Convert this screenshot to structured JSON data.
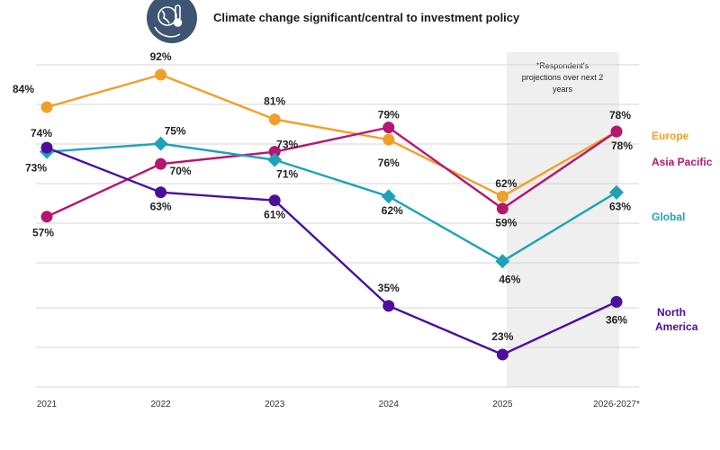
{
  "chart_data": {
    "type": "line",
    "title": "Climate change significant/central to investment policy",
    "note_lines": [
      "*Respondent's",
      "projections over next 2",
      "years"
    ],
    "categories": [
      "2021",
      "2022",
      "2023",
      "2024",
      "2025",
      "2026-2027*"
    ],
    "ylim": [
      0,
      100
    ],
    "grid": true,
    "series": [
      {
        "name": "Europe",
        "color": "#f0a02a",
        "marker": "circle",
        "values": [
          84,
          92,
          81,
          76,
          62,
          78
        ],
        "labels": [
          "84%",
          "92%",
          "81%",
          "76%",
          "62%",
          "78%"
        ]
      },
      {
        "name": "Asia Pacific",
        "color": "#b5176f",
        "marker": "circle",
        "values": [
          57,
          70,
          73,
          79,
          59,
          78
        ],
        "labels": [
          "57%",
          "70%",
          "73%",
          "79%",
          "59%",
          "78%"
        ]
      },
      {
        "name": "Global",
        "color": "#1fa2b8",
        "marker": "diamond",
        "values": [
          73,
          75,
          71,
          62,
          46,
          63
        ],
        "labels": [
          "73%",
          "75%",
          "71%",
          "62%",
          "46%",
          "63%"
        ]
      },
      {
        "name": "North America",
        "color": "#4b0f9c",
        "marker": "circle",
        "values": [
          74,
          63,
          61,
          35,
          23,
          36
        ],
        "labels": [
          "74%",
          "63%",
          "61%",
          "35%",
          "23%",
          "36%"
        ]
      }
    ]
  },
  "icon": {
    "name": "globe-thermometer-icon",
    "color": "#3d5573"
  }
}
